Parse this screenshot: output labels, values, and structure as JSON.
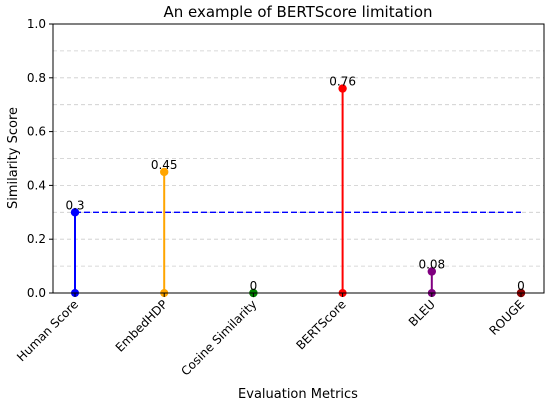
{
  "chart_data": {
    "type": "stem",
    "title": "An example of BERTScore limitation",
    "xlabel": "Evaluation Metrics",
    "ylabel": "Similarity Score",
    "ylim": [
      0,
      1.0
    ],
    "yticks": [
      "0.0",
      "0.2",
      "0.4",
      "0.6",
      "0.8",
      "1.0"
    ],
    "grid": "horizontal dashed",
    "categories": [
      "Human Score",
      "EmbedHDP",
      "Cosine Similarity",
      "BERTScore",
      "BLEU",
      "ROUGE"
    ],
    "values": [
      0.3,
      0.45,
      0,
      0.76,
      0.08,
      0
    ],
    "value_labels": [
      "0.3",
      "0.45",
      "0",
      "0.76",
      "0.08",
      "0"
    ],
    "colors": [
      "#0000ff",
      "#ffa500",
      "#008000",
      "#ff0000",
      "#800080",
      "#8b0000"
    ],
    "reference_line": {
      "value": 0.3,
      "color": "#0000ff",
      "style": "dashed"
    }
  }
}
